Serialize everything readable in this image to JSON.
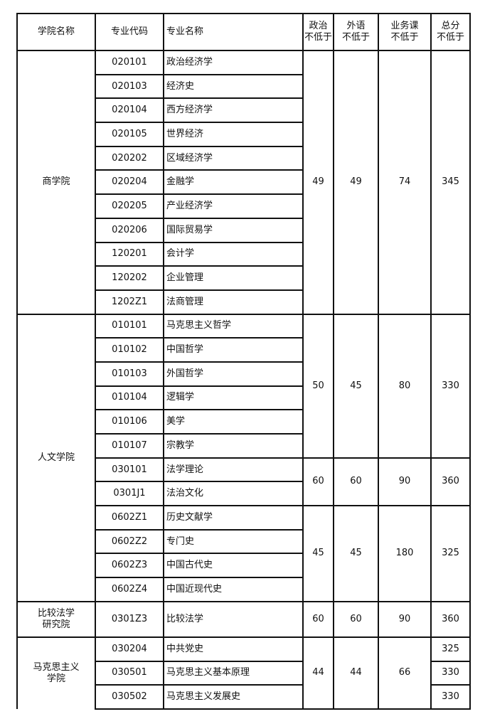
{
  "headers": {
    "college": "学院名称",
    "code": "专业代码",
    "major": "专业名称",
    "politics": [
      "政治",
      "不低于"
    ],
    "language": [
      "外语",
      "不低于"
    ],
    "course": [
      "业务课",
      "不低于"
    ],
    "total": [
      "总分",
      "不低于"
    ]
  },
  "colleges": [
    {
      "name": [
        "商学院"
      ],
      "groups": [
        {
          "politics": "49",
          "language": "49",
          "course": "74",
          "total": "345",
          "majors": [
            {
              "code": "020101",
              "name": "政治经济学"
            },
            {
              "code": "020103",
              "name": "经济史"
            },
            {
              "code": "020104",
              "name": "西方经济学"
            },
            {
              "code": "020105",
              "name": "世界经济"
            },
            {
              "code": "020202",
              "name": "区域经济学"
            },
            {
              "code": "020204",
              "name": "金融学"
            },
            {
              "code": "020205",
              "name": "产业经济学"
            },
            {
              "code": "020206",
              "name": "国际贸易学"
            },
            {
              "code": "120201",
              "name": "会计学"
            },
            {
              "code": "120202",
              "name": "企业管理"
            },
            {
              "code": "1202Z1",
              "name": "法商管理"
            }
          ]
        }
      ]
    },
    {
      "name": [
        "人文学院"
      ],
      "groups": [
        {
          "politics": "50",
          "language": "45",
          "course": "80",
          "total": "330",
          "majors": [
            {
              "code": "010101",
              "name": "马克思主义哲学"
            },
            {
              "code": "010102",
              "name": "中国哲学"
            },
            {
              "code": "010103",
              "name": "外国哲学"
            },
            {
              "code": "010104",
              "name": "逻辑学"
            },
            {
              "code": "010106",
              "name": "美学"
            },
            {
              "code": "010107",
              "name": "宗教学"
            }
          ]
        },
        {
          "politics": "60",
          "language": "60",
          "course": "90",
          "total": "360",
          "majors": [
            {
              "code": "030101",
              "name": "法学理论"
            },
            {
              "code": "0301J1",
              "name": "法治文化"
            }
          ]
        },
        {
          "politics": "45",
          "language": "45",
          "course": "180",
          "total": "325",
          "majors": [
            {
              "code": "0602Z1",
              "name": "历史文献学"
            },
            {
              "code": "0602Z2",
              "name": "专门史"
            },
            {
              "code": "0602Z3",
              "name": "中国古代史"
            },
            {
              "code": "0602Z4",
              "name": "中国近现代史"
            }
          ]
        }
      ]
    },
    {
      "name": [
        "比较法学",
        "研究院"
      ],
      "tall": true,
      "groups": [
        {
          "politics": "60",
          "language": "60",
          "course": "90",
          "total": "360",
          "majors": [
            {
              "code": "0301Z3",
              "name": "比较法学"
            }
          ]
        }
      ]
    },
    {
      "name": [
        "马克思主义",
        "学院"
      ],
      "open": true,
      "groups": [
        {
          "politics": "44",
          "language": "44",
          "course": "66",
          "majors": [
            {
              "code": "030204",
              "name": "中共党史",
              "total": "325"
            },
            {
              "code": "030501",
              "name": "马克思主义基本原理",
              "total": "330"
            },
            {
              "code": "030502",
              "name": "马克思主义发展史",
              "total": "330"
            }
          ]
        }
      ]
    }
  ]
}
